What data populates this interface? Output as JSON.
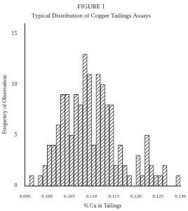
{
  "chart_data": {
    "type": "histogram",
    "title": "FIGURE 1",
    "subtitle": "Typical Distribution of Copper Tailings Assays",
    "x_label": "% Cu in Tailings",
    "y_label": "Frequency of Observation",
    "bins": [
      0.095,
      0.096,
      0.097,
      0.098,
      0.099,
      0.1,
      0.101,
      0.102,
      0.103,
      0.104,
      0.105,
      0.106,
      0.107,
      0.108,
      0.109,
      0.11,
      0.111,
      0.112,
      0.113,
      0.114,
      0.115,
      0.116,
      0.117,
      0.118,
      0.119,
      0.12,
      0.121,
      0.122,
      0.123,
      0.124,
      0.125,
      0.126,
      0.127,
      0.128,
      0.129,
      0.13
    ],
    "values": [
      0,
      1,
      0,
      1,
      2,
      4,
      4,
      6,
      9,
      9,
      5,
      9,
      8,
      13,
      11,
      4,
      11,
      10,
      8,
      8,
      2,
      4,
      2,
      1,
      0,
      3,
      1,
      5,
      2,
      1,
      1,
      2,
      0,
      0,
      1
    ],
    "color": "#333333",
    "xlim": [
      0.095,
      0.13
    ],
    "xticks": [
      {
        "value": 0.095,
        "label": "0.095"
      },
      {
        "value": 0.1,
        "label": "0.100"
      },
      {
        "value": 0.105,
        "label": "0.105"
      },
      {
        "value": 0.11,
        "label": "0.110"
      },
      {
        "value": 0.115,
        "label": "0.115"
      },
      {
        "value": 0.12,
        "label": "0.120"
      },
      {
        "value": 0.125,
        "label": "0.125"
      },
      {
        "value": 0.13,
        "label": "0.130"
      }
    ],
    "ylim": [
      0,
      16
    ],
    "yticks": [
      0,
      5,
      10,
      15
    ],
    "grid": false
  }
}
